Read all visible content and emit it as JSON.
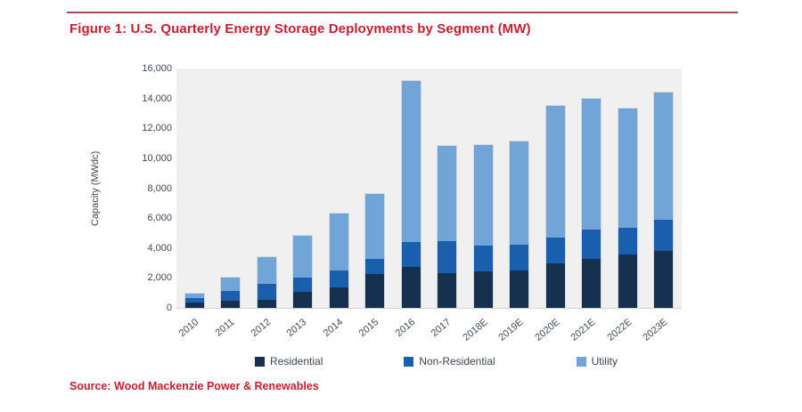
{
  "figure": {
    "title": "Figure 1: U.S. Quarterly Energy Storage Deployments by Segment (MW)",
    "source": "Source: Wood Mackenzie Power & Renewables"
  },
  "colors": {
    "residential": "#16304f",
    "non_residential": "#1a5fad",
    "utility": "#71a5d7",
    "plot_background": "#f0f0f1",
    "axis_text": "#3f4a58",
    "accent_red": "#c41e31",
    "top_rule": "#a34a57"
  },
  "chart_data": {
    "type": "bar",
    "stacked": true,
    "title": "Figure 1: U.S. Quarterly Energy Storage Deployments by Segment (MW)",
    "xlabel": "",
    "ylabel": "Capacity (MWdc)",
    "units": "MW",
    "ylim": [
      0,
      16000
    ],
    "ytick_step": 2000,
    "ytick_labels": [
      "0",
      "2,000",
      "4,000",
      "6,000",
      "8,000",
      "10,000",
      "12,000",
      "14,000",
      "16,000"
    ],
    "grid": false,
    "legend_position": "bottom",
    "categories": [
      "2010",
      "2011",
      "2012",
      "2013",
      "2014",
      "2015",
      "2016",
      "2017",
      "2018E",
      "2019E",
      "2020E",
      "2021E",
      "2022E",
      "2023E"
    ],
    "series": [
      {
        "name": "Residential",
        "color": "#16304f",
        "values": [
          350,
          450,
          550,
          1100,
          1350,
          2250,
          2750,
          2300,
          2450,
          2500,
          2950,
          3250,
          3550,
          3800
        ]
      },
      {
        "name": "Non-Residential",
        "color": "#1a5fad",
        "values": [
          300,
          700,
          1050,
          900,
          1150,
          1050,
          1650,
          2150,
          1700,
          1700,
          1750,
          2000,
          1800,
          2100
        ]
      },
      {
        "name": "Utility",
        "color": "#71a5d7",
        "values": [
          300,
          900,
          1800,
          2800,
          3800,
          4300,
          10750,
          6400,
          6750,
          6900,
          8800,
          8750,
          7950,
          8500
        ]
      }
    ],
    "totals": [
      950,
      2050,
      3400,
      4800,
      6300,
      7600,
      15150,
      10850,
      10900,
      11100,
      13500,
      14000,
      13300,
      14400
    ]
  }
}
